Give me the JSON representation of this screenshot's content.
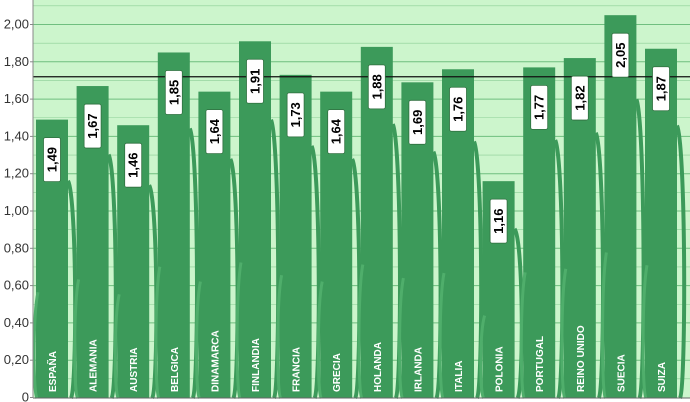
{
  "chart_data": {
    "type": "bar",
    "title": "",
    "xlabel": "",
    "ylabel": "",
    "ylim": [
      0,
      2.1
    ],
    "yticks": [
      "0",
      "0,20",
      "0,40",
      "0,60",
      "0,80",
      "1,00",
      "1,20",
      "1,40",
      "1,60",
      "1,80",
      "2,00"
    ],
    "grid": true,
    "reference_line": 1.72,
    "categories": [
      "ESPAÑA",
      "ALEMANIA",
      "AUSTRIA",
      "BELGICA",
      "DINAMARCA",
      "FINLANDIA",
      "FRANCIA",
      "GRECIA",
      "HOLANDA",
      "IRLANDA",
      "ITALIA",
      "POLONIA",
      "PORTUGAL",
      "REINO UNIDO",
      "SUECIA",
      "SUIZA"
    ],
    "values": [
      1.49,
      1.67,
      1.46,
      1.85,
      1.64,
      1.91,
      1.73,
      1.64,
      1.88,
      1.69,
      1.76,
      1.16,
      1.77,
      1.82,
      2.05,
      1.87
    ],
    "data_labels": [
      "1,49",
      "1,67",
      "1,46",
      "1,85",
      "1,64",
      "1,91",
      "1,73",
      "1,64",
      "1,88",
      "1,69",
      "1,76",
      "1,16",
      "1,77",
      "1,82",
      "2,05",
      "1,87"
    ],
    "colors": {
      "plot_background": "#ccf5cc",
      "bar": "#3c9a5a",
      "bar_light": "#4fae6b",
      "grid": "#6fbf7f",
      "reference_line": "#111111",
      "label_box": "#ffffff",
      "label_text": "#000000",
      "category_text": "#ffffff"
    }
  }
}
